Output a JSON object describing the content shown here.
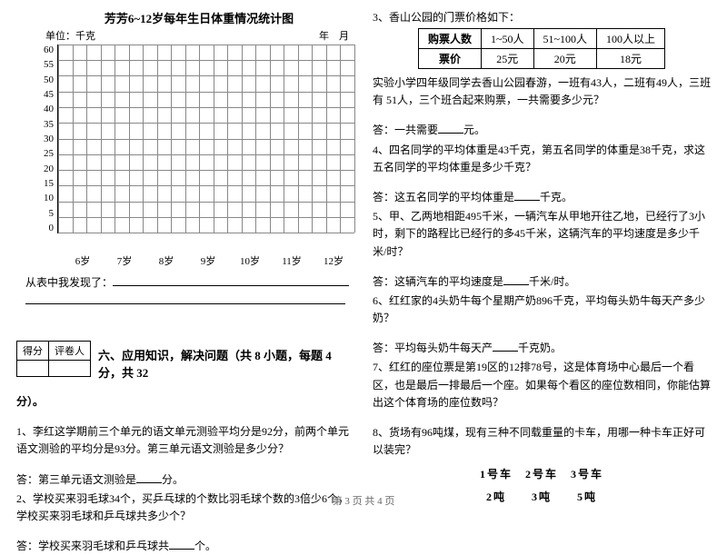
{
  "chart": {
    "title": "芳芳6~12岁每年生日体重情况统计图",
    "unit_label": "单位：千克",
    "date_label": "年　月",
    "yticks": [
      "60",
      "55",
      "50",
      "45",
      "40",
      "35",
      "30",
      "25",
      "20",
      "15",
      "10",
      "5",
      "0"
    ],
    "xticks": [
      "6岁",
      "7岁",
      "8岁",
      "9岁",
      "10岁",
      "11岁",
      "12岁"
    ],
    "found_label": "从表中我发现了："
  },
  "section6": {
    "score_header": [
      "得分",
      "评卷人"
    ],
    "title": "六、应用知识，解决问题（共 8 小题，每题 4 分，共 32",
    "title_tail": "分）。",
    "q1": "1、李红这学期前三个单元的语文单元测验平均分是92分，前两个单元语文测验的平均分是93分。第三单元语文测验是多少分？",
    "a1": "答：第三单元语文测验是____分。",
    "q2": "2、学校买来羽毛球34个，买乒乓球的个数比羽毛球个数的3倍少6个，学校买来羽毛球和乒乓球共多少个？",
    "a2": "答：学校买来羽毛球和乒乓球共____个。",
    "q3_head": "3、香山公园的门票价格如下：",
    "ticket_header": [
      "购票人数",
      "1~50人",
      "51~100人",
      "100人以上"
    ],
    "ticket_row": [
      "票价",
      "25元",
      "20元",
      "18元"
    ],
    "q3_body": "实验小学四年级同学去香山公园春游，一班有43人，二班有49人，三班有 51人，三个班合起来购票，一共需要多少元？",
    "a3": "答：一共需要____元。",
    "q4": "4、四名同学的平均体重是43千克，第五名同学的体重是38千克，求这五名同学的平均体重是多少千克？",
    "a4": "答：这五名同学的平均体重是____千克。",
    "q5": "5、甲、乙两地相距495千米，一辆汽车从甲地开往乙地，已经行了3小时，剩下的路程比已经行的多45千米，这辆汽车的平均速度是多少千米/时？",
    "a5": "答：这辆汽车的平均速度是____千米/时。",
    "q6": "6、红红家的4头奶牛每个星期产奶896千克，平均每头奶牛每天产多少奶？",
    "a6": "答：平均每头奶牛每天产____千克奶。",
    "q7": "7、红红的座位票是第19区的12排78号，这是体育场中心最后一个看区，也是最后一排最后一个座。如果每个看区的座位数相同，你能估算出这个体育场的座位数吗？",
    "q8": "8、货场有96吨煤，现有三种不同载重量的卡车，用哪一种卡车正好可以装完？",
    "cars": "1号车　2号车　3号车",
    "tons": "2吨　　3吨　　5吨"
  },
  "footer": "第 3 页 共 4 页"
}
